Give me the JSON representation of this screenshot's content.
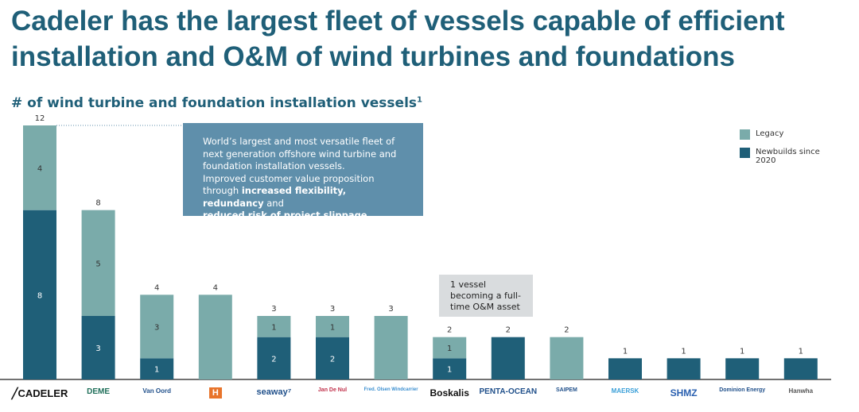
{
  "title_line1": "Cadeler has the largest fleet of vessels capable of efficient",
  "title_line2": "installation and O&M of wind turbines and foundations",
  "subtitle": "# of wind turbine and foundation installation vessels",
  "subtitle_footnote": "1",
  "callout": {
    "text1": "World’s largest and most versatile fleet of next generation offshore wind turbine and foundation installation vessels.",
    "text2": "Improved customer value proposition through ",
    "bold1": "increased flexibility, redundancy",
    "text3": " and ",
    "bold2": "reduced risk of project slippage",
    "text4": "."
  },
  "note": "1 vessel becoming a full-time O&M asset",
  "colors": {
    "newbuilds": "#1f5f78",
    "legacy": "#7aabaa",
    "title": "#1f5f78",
    "callout": "#5f8fab"
  },
  "chart_data": {
    "type": "bar",
    "stacked": true,
    "categories": [
      "Cadeler",
      "DEME",
      "Van Oord",
      "H",
      "Seaway7",
      "Jan De Nul",
      "Fred. Olsen Windcarrier",
      "Boskalis",
      "Penta-Ocean",
      "Saipem",
      "Maersk",
      "SHMZ",
      "Dominion Energy",
      "Hanwha Ocean"
    ],
    "series": [
      {
        "name": "Newbuilds since 2020",
        "values": [
          8,
          3,
          1,
          0,
          2,
          2,
          0,
          1,
          2,
          0,
          1,
          1,
          1,
          1
        ]
      },
      {
        "name": "Legacy",
        "values": [
          4,
          5,
          3,
          4,
          1,
          1,
          3,
          1,
          0,
          2,
          0,
          0,
          0,
          0
        ]
      }
    ],
    "totals": [
      12,
      8,
      4,
      4,
      3,
      3,
      3,
      2,
      2,
      2,
      1,
      1,
      1,
      1
    ],
    "ylim": [
      0,
      12
    ],
    "legend_position": "top-right",
    "legend": [
      "Legacy",
      "Newbuilds since 2020"
    ]
  }
}
